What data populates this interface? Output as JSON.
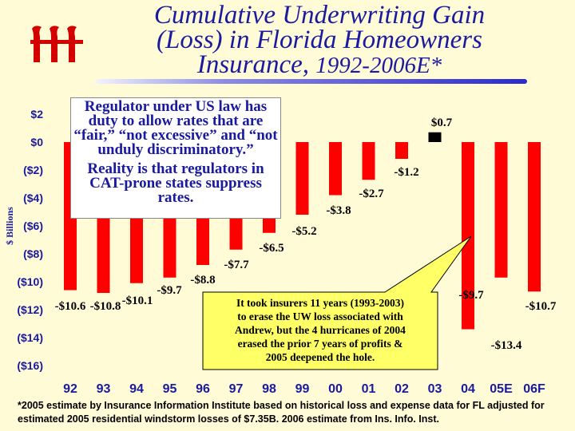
{
  "title": {
    "line1": "Cumulative Underwriting Gain",
    "line2": "(Loss) in Florida Homeowners",
    "line3": "Insurance,",
    "line3_years": "1992-2006E*"
  },
  "logo": {
    "icon": "iii-logo-icon",
    "text": "iii"
  },
  "callout_regulator": {
    "text1": "Regulator under US law has duty to allow rates that are “fair,” “not excessive” and “not unduly discriminatory.”",
    "text2": "Reality is that regulators in CAT-prone states suppress rates."
  },
  "callout_insurers": {
    "text": "It took insurers 11 years (1993-2003) to erase the UW loss associated with Andrew, but the 4 hurricanes of 2004 erased the prior 7 years of profits & 2005 deepened the hole."
  },
  "footnote": "*2005 estimate by Insurance Information Institute based on historical loss and expense data for FL adjusted for estimated 2005 residential windstorm losses of $7.35B. 2006 estimate from Ins. Info. Inst.",
  "colors": {
    "bar": "#ff0000",
    "positive_bar": "#000000",
    "title": "#1a1aa0",
    "background": "#fffbd6",
    "callout_yellow": "#ffff66"
  },
  "chart_data": {
    "type": "bar",
    "ylabel": "$ Billions",
    "ylim": [
      -16,
      2
    ],
    "yticks": [
      "$2",
      "$0",
      "($2)",
      "($4)",
      "($6)",
      "($8)",
      "($10)",
      "($12)",
      "($14)",
      "($16)"
    ],
    "categories": [
      "92",
      "93",
      "94",
      "95",
      "96",
      "97",
      "98",
      "99",
      "00",
      "01",
      "02",
      "03",
      "04",
      "05E",
      "06F"
    ],
    "values": [
      -10.6,
      -10.8,
      -10.1,
      -9.7,
      -8.8,
      -7.7,
      -6.5,
      -5.2,
      -3.8,
      -2.7,
      -1.2,
      0.7,
      -13.4,
      -9.7,
      -10.7
    ],
    "data_labels": [
      "-$10.6",
      "-$10.8",
      "-$10.1",
      "-$9.7",
      "-$8.8",
      "-$7.7",
      "-$6.5",
      "-$5.2",
      "-$3.8",
      "-$2.7",
      "-$1.2",
      "$0.7",
      "-$13.4",
      "-$9.7",
      "-$10.7"
    ]
  }
}
